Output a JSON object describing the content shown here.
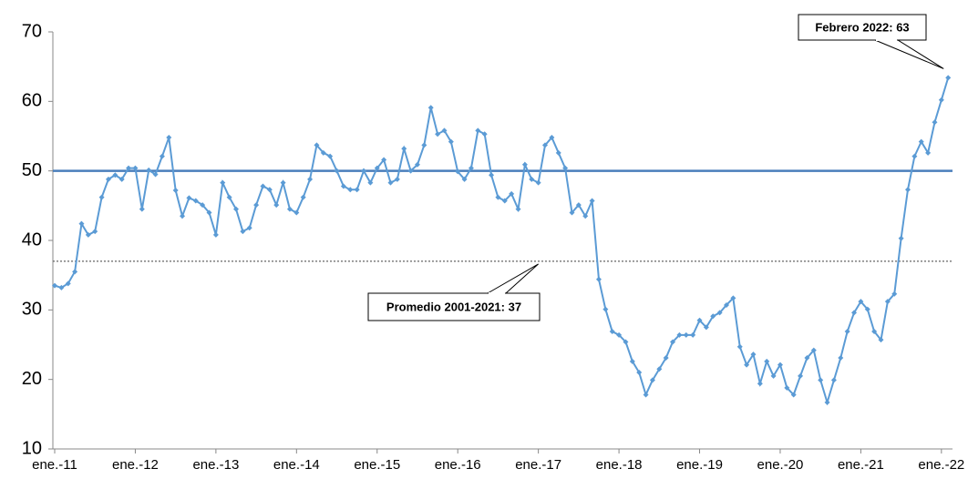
{
  "chart_data": {
    "type": "line",
    "categories": [
      "ene.-11",
      null,
      null,
      null,
      null,
      null,
      null,
      null,
      null,
      null,
      null,
      null,
      "ene.-12",
      null,
      null,
      null,
      null,
      null,
      null,
      null,
      null,
      null,
      null,
      null,
      "ene.-13",
      null,
      null,
      null,
      null,
      null,
      null,
      null,
      null,
      null,
      null,
      null,
      "ene.-14",
      null,
      null,
      null,
      null,
      null,
      null,
      null,
      null,
      null,
      null,
      null,
      "ene.-15",
      null,
      null,
      null,
      null,
      null,
      null,
      null,
      null,
      null,
      null,
      null,
      "ene.-16",
      null,
      null,
      null,
      null,
      null,
      null,
      null,
      null,
      null,
      null,
      null,
      "ene.-17",
      null,
      null,
      null,
      null,
      null,
      null,
      null,
      null,
      null,
      null,
      null,
      "ene.-18",
      null,
      null,
      null,
      null,
      null,
      null,
      null,
      null,
      null,
      null,
      null,
      "ene.-19",
      null,
      null,
      null,
      null,
      null,
      null,
      null,
      null,
      null,
      null,
      null,
      "ene.-20",
      null,
      null,
      null,
      null,
      null,
      null,
      null,
      null,
      null,
      null,
      null,
      "ene.-21",
      null,
      null,
      null,
      null,
      null,
      null,
      null,
      null,
      null,
      null,
      null,
      "ene.-22",
      null
    ],
    "series": [
      {
        "color": "#5b9bd5",
        "values": [
          33.5,
          33.2,
          33.8,
          35.5,
          42.4,
          40.8,
          41.3,
          46.2,
          48.8,
          49.4,
          48.8,
          50.4,
          50.4,
          44.5,
          50.1,
          49.5,
          52.1,
          54.8,
          47.2,
          43.5,
          46.1,
          45.7,
          45.1,
          44.0,
          40.8,
          48.3,
          46.2,
          44.5,
          41.3,
          41.8,
          45.1,
          47.8,
          47.3,
          45.1,
          48.3,
          44.5,
          44.0,
          46.2,
          48.8,
          53.7,
          52.6,
          52.1,
          50.0,
          47.8,
          47.3,
          47.3,
          50.0,
          48.3,
          50.4,
          51.6,
          48.3,
          48.8,
          53.2,
          50.0,
          50.9,
          53.7,
          59.1,
          55.3,
          55.8,
          54.2,
          49.9,
          48.8,
          50.4,
          55.8,
          55.3,
          49.4,
          46.2,
          45.7,
          46.7,
          44.5,
          50.9,
          48.8,
          48.3,
          53.7,
          54.8,
          52.6,
          50.4,
          44.0,
          45.1,
          43.5,
          45.7,
          34.4,
          30.1,
          26.9,
          26.4,
          25.4,
          22.6,
          21.0,
          17.8,
          19.9,
          21.5,
          23.1,
          25.4,
          26.4,
          26.4,
          26.4,
          28.5,
          27.5,
          29.1,
          29.6,
          30.7,
          31.7,
          24.7,
          22.1,
          23.6,
          19.4,
          22.6,
          20.5,
          22.1,
          18.8,
          17.8,
          20.5,
          23.1,
          24.2,
          19.9,
          16.7,
          19.9,
          23.1,
          26.9,
          29.6,
          31.2,
          30.1,
          26.9,
          25.7,
          31.2,
          32.3,
          40.3,
          47.3,
          52.1,
          54.2,
          52.6,
          57.0,
          60.2,
          63.4
        ]
      }
    ],
    "ylim": [
      10,
      70
    ],
    "yticks": [
      10,
      20,
      30,
      40,
      50,
      60,
      70
    ],
    "reference_lines": [
      {
        "value": 50,
        "style": "solid",
        "color": "#4a7ebb"
      },
      {
        "value": 37,
        "style": "dotted",
        "color": "#666666"
      }
    ],
    "annotations": [
      {
        "text": "Febrero 2022: 63",
        "index": 133
      },
      {
        "text": "Promedio 2001-2021: 37",
        "index": 72
      }
    ]
  }
}
